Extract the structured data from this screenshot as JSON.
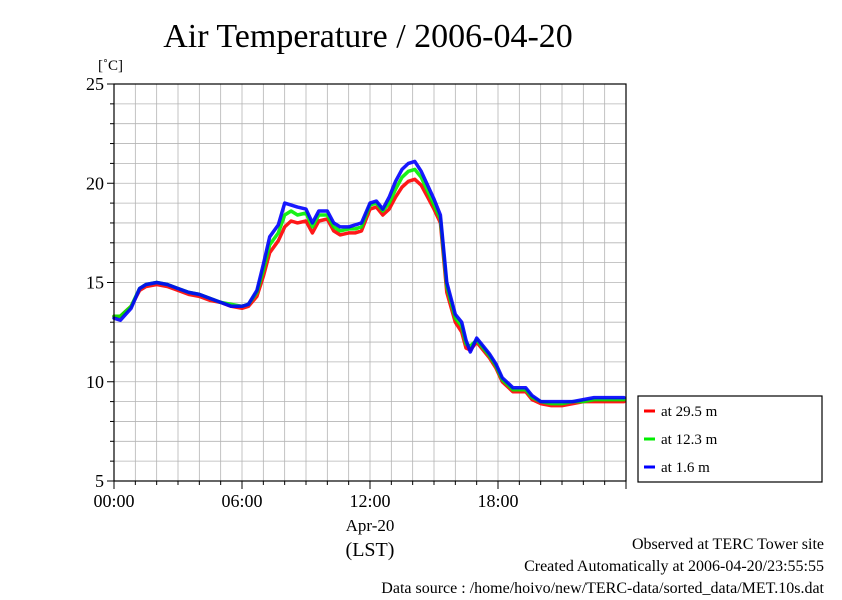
{
  "chart_data": {
    "type": "line",
    "title": "Air Temperature / 2006-04-20",
    "yunit": "[˚C]",
    "ylim": [
      5,
      25
    ],
    "yticks": [
      "25",
      "20",
      "15",
      "10",
      "5"
    ],
    "xlim": [
      0,
      24
    ],
    "xticks": [
      "00:00",
      "06:00",
      "12:00",
      "18:00"
    ],
    "xlabel_date": "Apr-20",
    "xlabel_tz": "(LST)",
    "grid": true,
    "legend_position": "bottom-right-outside",
    "x_hours": [
      0.0,
      0.3,
      0.8,
      1.2,
      1.5,
      2.0,
      2.5,
      3.0,
      3.5,
      4.0,
      4.5,
      5.0,
      5.5,
      6.0,
      6.3,
      6.7,
      7.0,
      7.3,
      7.7,
      8.0,
      8.3,
      8.6,
      9.0,
      9.3,
      9.6,
      10.0,
      10.3,
      10.6,
      11.0,
      11.3,
      11.6,
      12.0,
      12.3,
      12.6,
      12.9,
      13.2,
      13.5,
      13.8,
      14.1,
      14.4,
      14.7,
      15.0,
      15.3,
      15.6,
      16.0,
      16.3,
      16.5,
      16.7,
      17.0,
      17.3,
      17.6,
      17.9,
      18.2,
      18.5,
      18.7,
      19.0,
      19.3,
      19.6,
      20.0,
      20.5,
      21.0,
      21.5,
      22.0,
      22.5,
      23.0,
      23.5,
      23.9
    ],
    "series": [
      {
        "name": "at 29.5 m",
        "color": "#ff0000",
        "values": [
          13.3,
          13.3,
          13.8,
          14.6,
          14.8,
          14.9,
          14.8,
          14.6,
          14.4,
          14.3,
          14.1,
          14.0,
          13.8,
          13.7,
          13.8,
          14.3,
          15.3,
          16.5,
          17.1,
          17.8,
          18.1,
          18.0,
          18.1,
          17.5,
          18.1,
          18.2,
          17.6,
          17.4,
          17.5,
          17.5,
          17.6,
          18.7,
          18.8,
          18.4,
          18.7,
          19.3,
          19.8,
          20.1,
          20.2,
          19.9,
          19.3,
          18.7,
          18.0,
          14.5,
          13.0,
          12.5,
          11.7,
          11.6,
          12.0,
          11.6,
          11.2,
          10.7,
          10.0,
          9.7,
          9.5,
          9.5,
          9.5,
          9.1,
          8.9,
          8.8,
          8.8,
          8.9,
          9.0,
          9.0,
          9.0,
          9.0,
          9.0
        ]
      },
      {
        "name": "at 12.3 m",
        "color": "#00ee00",
        "values": [
          13.3,
          13.3,
          13.8,
          14.7,
          14.9,
          15.0,
          14.9,
          14.7,
          14.5,
          14.4,
          14.2,
          14.0,
          13.9,
          13.8,
          13.9,
          14.5,
          15.6,
          16.9,
          17.5,
          18.4,
          18.6,
          18.4,
          18.5,
          17.8,
          18.4,
          18.4,
          17.8,
          17.6,
          17.7,
          17.7,
          17.8,
          18.9,
          19.0,
          18.6,
          19.0,
          19.7,
          20.3,
          20.6,
          20.7,
          20.3,
          19.6,
          18.9,
          18.2,
          14.8,
          13.2,
          12.8,
          11.9,
          11.8,
          12.1,
          11.7,
          11.3,
          10.8,
          10.1,
          9.8,
          9.6,
          9.6,
          9.6,
          9.2,
          9.0,
          8.9,
          8.9,
          9.0,
          9.0,
          9.1,
          9.1,
          9.1,
          9.1
        ]
      },
      {
        "name": "at 1.6 m",
        "color": "#0000ff",
        "values": [
          13.2,
          13.1,
          13.7,
          14.7,
          14.9,
          15.0,
          14.9,
          14.7,
          14.5,
          14.4,
          14.2,
          14.0,
          13.8,
          13.8,
          13.9,
          14.6,
          15.9,
          17.3,
          17.9,
          19.0,
          18.9,
          18.8,
          18.7,
          18.0,
          18.6,
          18.6,
          18.0,
          17.8,
          17.8,
          17.9,
          18.0,
          19.0,
          19.1,
          18.7,
          19.3,
          20.1,
          20.7,
          21.0,
          21.1,
          20.6,
          19.9,
          19.2,
          18.4,
          15.0,
          13.4,
          13.0,
          12.1,
          11.5,
          12.2,
          11.8,
          11.4,
          10.9,
          10.2,
          9.9,
          9.7,
          9.7,
          9.7,
          9.3,
          9.0,
          9.0,
          9.0,
          9.0,
          9.1,
          9.2,
          9.2,
          9.2,
          9.2
        ]
      }
    ]
  },
  "footer": {
    "line1": "Observed at TERC Tower site",
    "line2": "Created Automatically at 2006-04-20/23:55:55",
    "line3": "Data source : /home/hoivo/new/TERC-data/sorted_data/MET.10s.dat"
  }
}
